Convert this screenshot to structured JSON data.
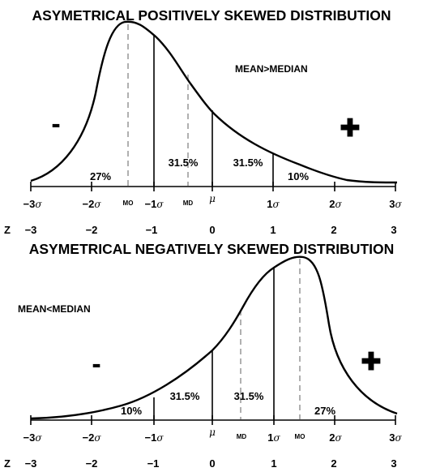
{
  "top": {
    "title": "ASYMETRICAL POSITIVELY SKEWED DISTRIBUTION",
    "note": "MEAN>MEDIAN",
    "minus_sign": "-",
    "plus_sign": "✚",
    "regions": [
      "27%",
      "31.5%",
      "31.5%",
      "10%"
    ],
    "axis_labels": [
      {
        "main": "−3",
        "sigma": "σ"
      },
      {
        "main": "−2",
        "sigma": "σ"
      },
      {
        "main": "MO",
        "sigma": ""
      },
      {
        "main": "−1",
        "sigma": "σ"
      },
      {
        "main": "MD",
        "sigma": ""
      },
      {
        "main": "μ",
        "sigma": ""
      },
      {
        "main": "1",
        "sigma": "σ"
      },
      {
        "main": "2",
        "sigma": "σ"
      },
      {
        "main": "3",
        "sigma": "σ"
      }
    ],
    "z_label": "Z",
    "z_values": [
      "−3",
      "−2",
      "−1",
      "0",
      "1",
      "2",
      "3"
    ]
  },
  "bottom": {
    "title": "ASYMETRICAL NEGATIVELY SKEWED DISTRIBUTION",
    "note": "MEAN<MEDIAN",
    "minus_sign": "-",
    "plus_sign": "✚",
    "regions": [
      "10%",
      "31.5%",
      "31.5%",
      "27%"
    ],
    "axis_labels": [
      {
        "main": "−3",
        "sigma": "σ"
      },
      {
        "main": "−2",
        "sigma": "σ"
      },
      {
        "main": "−1",
        "sigma": "σ"
      },
      {
        "main": "μ",
        "sigma": ""
      },
      {
        "main": "MD",
        "sigma": ""
      },
      {
        "main": "1",
        "sigma": "σ"
      },
      {
        "main": "MO",
        "sigma": ""
      },
      {
        "main": "2",
        "sigma": "σ"
      },
      {
        "main": "3",
        "sigma": "σ"
      }
    ],
    "z_label": "Z",
    "z_values": [
      "−3",
      "−2",
      "−1",
      "0",
      "1",
      "2",
      "3"
    ]
  }
}
